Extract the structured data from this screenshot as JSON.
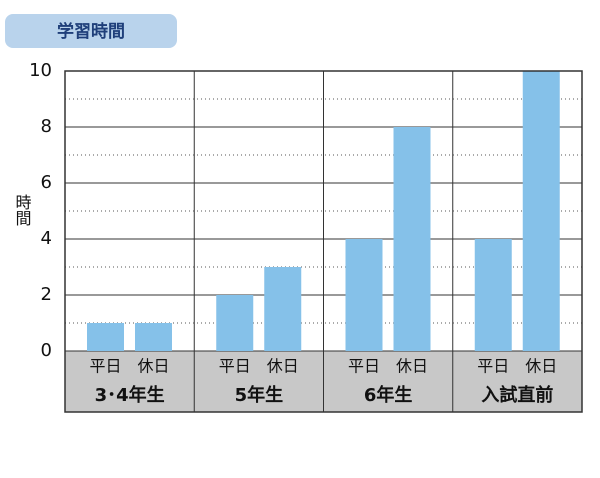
{
  "chart_data": {
    "type": "bar",
    "title": "学習時間",
    "y_label": "時間",
    "categories": [
      "3･4年生",
      "5年生",
      "6年生",
      "入試直前"
    ],
    "series": [
      {
        "name": "平日",
        "color": "#85c1e9",
        "values": [
          1,
          2,
          4,
          4
        ]
      },
      {
        "name": "休日",
        "color": "#85c1e9",
        "values": [
          1,
          3,
          8,
          10
        ]
      }
    ],
    "ylim": [
      0,
      10
    ],
    "yticks": [
      0,
      2,
      4,
      6,
      8,
      10
    ],
    "minor_yticks": [
      1,
      3,
      5,
      7,
      9
    ],
    "grid": true
  }
}
